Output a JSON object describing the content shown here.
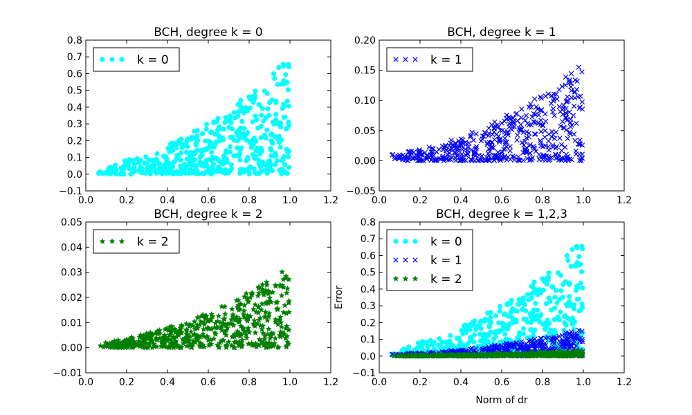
{
  "chart_data": [
    {
      "type": "scatter",
      "title": "BCH, degree k = 0",
      "xlabel": "",
      "ylabel": "",
      "xlim": [
        0.0,
        1.2
      ],
      "ylim": [
        -0.1,
        0.8
      ],
      "xticks": [
        "0.0",
        "0.2",
        "0.4",
        "0.6",
        "0.8",
        "1.0",
        "1.2"
      ],
      "yticks": [
        "−0.1",
        "0.0",
        "0.1",
        "0.2",
        "0.3",
        "0.4",
        "0.5",
        "0.6",
        "0.7",
        "0.8"
      ],
      "grid": false,
      "legend": "top-left",
      "series": [
        {
          "name": "k = 0",
          "marker": "circle",
          "color": "#00ffff",
          "max_error": 0.67
        }
      ]
    },
    {
      "type": "scatter",
      "title": "BCH, degree k = 1",
      "xlabel": "",
      "ylabel": "",
      "xlim": [
        0.0,
        1.2
      ],
      "ylim": [
        -0.05,
        0.2
      ],
      "xticks": [
        "0.0",
        "0.2",
        "0.4",
        "0.6",
        "0.8",
        "1.0",
        "1.2"
      ],
      "yticks": [
        "−0.05",
        "0.00",
        "0.05",
        "0.10",
        "0.15",
        "0.20"
      ],
      "grid": false,
      "legend": "top-left",
      "series": [
        {
          "name": "k = 1",
          "marker": "x",
          "color": "#0000ff",
          "max_error": 0.155
        }
      ]
    },
    {
      "type": "scatter",
      "title": "BCH, degree k = 2",
      "xlabel": "",
      "ylabel": "",
      "xlim": [
        0.0,
        1.2
      ],
      "ylim": [
        -0.01,
        0.05
      ],
      "xticks": [
        "0.0",
        "0.2",
        "0.4",
        "0.6",
        "0.8",
        "1.0",
        "1.2"
      ],
      "yticks": [
        "−0.01",
        "0.00",
        "0.01",
        "0.02",
        "0.03",
        "0.04",
        "0.05"
      ],
      "grid": false,
      "legend": "top-left",
      "series": [
        {
          "name": "k = 2",
          "marker": "star",
          "color": "#007f00",
          "max_error": 0.031
        }
      ]
    },
    {
      "type": "scatter",
      "title": "BCH, degree k = 1,2,3",
      "xlabel": "Norm of dr",
      "ylabel": "Error",
      "xlim": [
        0.0,
        1.2
      ],
      "ylim": [
        -0.1,
        0.8
      ],
      "xticks": [
        "0.0",
        "0.2",
        "0.4",
        "0.6",
        "0.8",
        "1.0",
        "1.2"
      ],
      "yticks": [
        "−0.1",
        "0.0",
        "0.1",
        "0.2",
        "0.3",
        "0.4",
        "0.5",
        "0.6",
        "0.7",
        "0.8"
      ],
      "grid": false,
      "legend": "top-left",
      "series": [
        {
          "name": "k = 0",
          "marker": "circle",
          "color": "#00ffff",
          "max_error": 0.67
        },
        {
          "name": "k = 1",
          "marker": "x",
          "color": "#0000ff",
          "max_error": 0.155
        },
        {
          "name": "k = 2",
          "marker": "star",
          "color": "#007f00",
          "max_error": 0.031
        }
      ]
    }
  ]
}
